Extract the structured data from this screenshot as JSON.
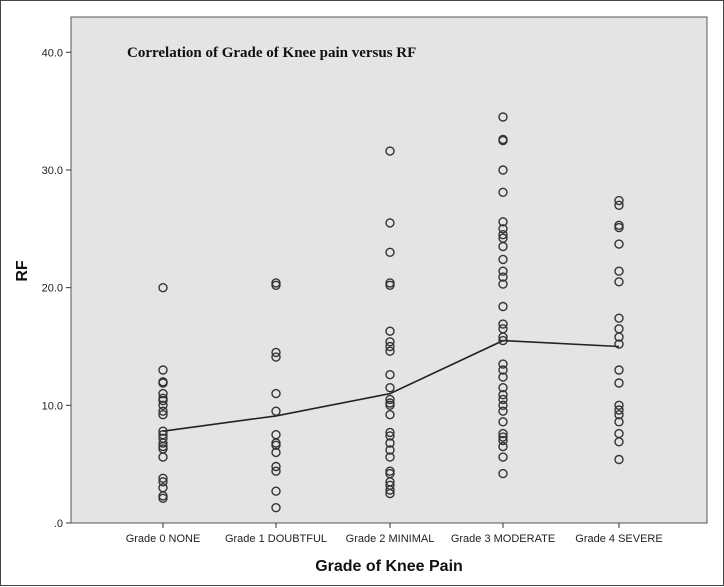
{
  "chart_data": {
    "type": "scatter",
    "title": "Correlation of Grade of Knee pain versus RF",
    "xlabel": "Grade of Knee Pain",
    "ylabel": "RF",
    "categories": [
      "Grade 0 NONE",
      "Grade 1 DOUBTFUL",
      "Grade 2 MINIMAL",
      "Grade 3 MODERATE",
      "Grade 4 SEVERE"
    ],
    "y_ticks": [
      ".0",
      "10.0",
      "20.0",
      "30.0",
      "40.0"
    ],
    "ylim": [
      0,
      43
    ],
    "grid": false,
    "colors": {
      "plot_bg": "#e4e4e4",
      "marker": "#333333",
      "line": "#222222"
    },
    "points": [
      [
        20.0,
        13.0,
        12.0,
        11.9,
        11.0,
        10.6,
        10.4,
        10.0,
        9.5,
        9.2,
        7.8,
        7.5,
        7.2,
        6.8,
        6.5,
        6.3,
        5.6,
        3.8,
        3.5,
        3.0,
        2.3,
        2.1
      ],
      [
        20.4,
        20.2,
        14.5,
        14.1,
        11.0,
        9.5,
        7.5,
        6.8,
        6.6,
        6.0,
        4.8,
        4.4,
        2.7,
        1.3
      ],
      [
        31.6,
        25.5,
        23.0,
        20.4,
        20.2,
        16.3,
        15.4,
        15.0,
        14.6,
        12.6,
        11.5,
        10.5,
        10.2,
        10.0,
        9.2,
        7.7,
        7.4,
        6.8,
        6.2,
        5.6,
        4.4,
        4.2,
        3.5,
        3.2,
        2.8,
        2.5
      ],
      [
        34.5,
        32.6,
        32.5,
        30.0,
        28.1,
        25.6,
        25.0,
        24.5,
        24.2,
        23.5,
        22.4,
        21.4,
        20.9,
        20.3,
        18.4,
        16.9,
        16.5,
        15.8,
        15.5,
        13.5,
        13.0,
        12.4,
        11.5,
        10.9,
        10.5,
        10.0,
        9.5,
        8.6,
        7.6,
        7.3,
        7.0,
        6.5,
        5.6,
        4.2
      ],
      [
        27.4,
        27.0,
        25.3,
        25.1,
        23.7,
        21.4,
        20.5,
        17.4,
        16.5,
        15.8,
        15.2,
        13.0,
        11.9,
        10.0,
        9.6,
        9.2,
        8.6,
        7.6,
        6.9,
        5.4
      ]
    ],
    "means": [
      7.8,
      9.1,
      11.0,
      15.5,
      15.0
    ]
  }
}
